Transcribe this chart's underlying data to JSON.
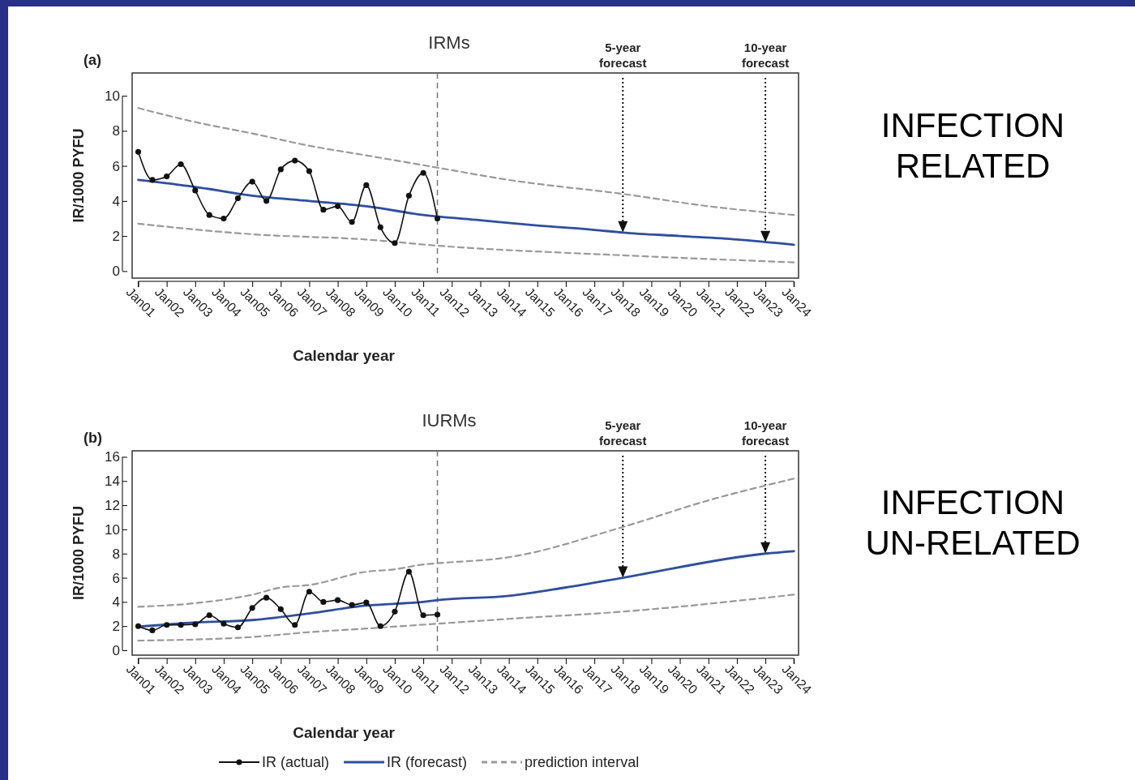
{
  "chart_data": [
    {
      "type": "line",
      "title": "IRMs",
      "xlabel": "Calendar year",
      "ylabel": "IR/1000 PYFU",
      "xlim": [
        "2000-10-15",
        "2024-03-01"
      ],
      "ylim": [
        -0.4,
        11.3
      ],
      "yticks": [
        0,
        2,
        4,
        6,
        8,
        10
      ],
      "xticks": [
        {
          "value": "2001-01",
          "label": "Jan01"
        },
        {
          "value": "2002-01",
          "label": "Jan02"
        },
        {
          "value": "2003-01",
          "label": "Jan03"
        },
        {
          "value": "2004-01",
          "label": "Jan04"
        },
        {
          "value": "2005-01",
          "label": "Jan05"
        },
        {
          "value": "2006-01",
          "label": "Jan06"
        },
        {
          "value": "2007-01",
          "label": "Jan07"
        },
        {
          "value": "2008-01",
          "label": "Jan08"
        },
        {
          "value": "2009-01",
          "label": "Jan09"
        },
        {
          "value": "2010-01",
          "label": "Jan10"
        },
        {
          "value": "2011-01",
          "label": "Jan11"
        },
        {
          "value": "2012-01",
          "label": "Jan12"
        },
        {
          "value": "2013-01",
          "label": "Jan13"
        },
        {
          "value": "2014-01",
          "label": "Jan14"
        },
        {
          "value": "2015-01",
          "label": "Jan15"
        },
        {
          "value": "2016-01",
          "label": "Jan16"
        },
        {
          "value": "2017-01",
          "label": "Jan17"
        },
        {
          "value": "2018-01",
          "label": "Jan18"
        },
        {
          "value": "2019-01",
          "label": "Jan19"
        },
        {
          "value": "2020-01",
          "label": "Jan20"
        },
        {
          "value": "2021-01",
          "label": "Jan21"
        },
        {
          "value": "2022-01",
          "label": "Jan22"
        },
        {
          "value": "2023-01",
          "label": "Jan23"
        },
        {
          "value": "2024-01",
          "label": "Jan24"
        }
      ],
      "series": [
        {
          "color": "#999999",
          "line_style": "dashed",
          "marker": "none",
          "x": [
            "2001-01",
            "2003-01",
            "2005-01",
            "2007-01",
            "2009-01",
            "2011-07",
            "2014-01",
            "2018-01",
            "2021-01",
            "2024-01"
          ],
          "values": [
            9.3,
            8.5,
            7.85,
            7.15,
            6.6,
            5.9,
            5.2,
            4.4,
            3.7,
            3.2
          ]
        },
        {
          "color": "#999999",
          "line_style": "dashed",
          "marker": "none",
          "x": [
            "2001-01",
            "2005-01",
            "2009-01",
            "2011-07",
            "2018-01",
            "2024-01"
          ],
          "values": [
            2.7,
            2.1,
            1.8,
            1.45,
            0.9,
            0.5
          ]
        },
        {
          "color": "#2e4f9e",
          "line_style": "solid",
          "marker": "none",
          "x": [
            "2001-01",
            "2003-01",
            "2005-01",
            "2007-01",
            "2009-01",
            "2011-01",
            "2013-01",
            "2015-01",
            "2017-01",
            "2018-01",
            "2020-01",
            "2022-01",
            "2024-01"
          ],
          "values": [
            5.2,
            4.8,
            4.3,
            4.0,
            3.7,
            3.2,
            2.9,
            2.6,
            2.35,
            2.2,
            2.0,
            1.8,
            1.5
          ]
        },
        {
          "color": "#111111",
          "line_style": "solid",
          "marker": "circle",
          "x": [
            "2001-01",
            "2001-07",
            "2002-01",
            "2002-07",
            "2003-01",
            "2003-07",
            "2004-01",
            "2004-07",
            "2005-01",
            "2005-07",
            "2006-01",
            "2006-07",
            "2007-01",
            "2007-07",
            "2008-01",
            "2008-07",
            "2009-01",
            "2009-07",
            "2010-01",
            "2010-07",
            "2011-01",
            "2011-07"
          ],
          "values": [
            6.8,
            5.2,
            5.4,
            6.1,
            4.6,
            3.2,
            3.0,
            4.15,
            5.1,
            4.0,
            5.8,
            6.3,
            5.7,
            3.5,
            3.7,
            2.8,
            4.9,
            2.5,
            1.6,
            4.3,
            5.6,
            3.0
          ]
        }
      ],
      "ref_lines": [
        {
          "axis": "x",
          "value": "2011-07",
          "color": "#777777",
          "line_style": "dashed"
        },
        {
          "axis": "x",
          "value": "2018-01",
          "label": "5-year forecast",
          "color": "#111111",
          "line_style": "dotted"
        },
        {
          "axis": "x",
          "value": "2023-01",
          "label": "10-year forecast",
          "color": "#111111",
          "line_style": "dotted"
        }
      ],
      "annotations": [
        "(a)",
        "INFECTION RELATED"
      ]
    },
    {
      "type": "line",
      "title": "IURMs",
      "xlabel": "Calendar year",
      "ylabel": "IR/1000 PYFU",
      "legend": "bottom",
      "xlim": [
        "2000-10-15",
        "2024-03-01"
      ],
      "ylim": [
        -0.4,
        16.5
      ],
      "yticks": [
        0,
        2,
        4,
        6,
        8,
        10,
        12,
        14,
        16
      ],
      "xticks": [
        {
          "value": "2001-01",
          "label": "Jan01"
        },
        {
          "value": "2002-01",
          "label": "Jan02"
        },
        {
          "value": "2003-01",
          "label": "Jan03"
        },
        {
          "value": "2004-01",
          "label": "Jan04"
        },
        {
          "value": "2005-01",
          "label": "Jan05"
        },
        {
          "value": "2006-01",
          "label": "Jan06"
        },
        {
          "value": "2007-01",
          "label": "Jan07"
        },
        {
          "value": "2008-01",
          "label": "Jan08"
        },
        {
          "value": "2009-01",
          "label": "Jan09"
        },
        {
          "value": "2010-01",
          "label": "Jan10"
        },
        {
          "value": "2011-01",
          "label": "Jan11"
        },
        {
          "value": "2012-01",
          "label": "Jan12"
        },
        {
          "value": "2013-01",
          "label": "Jan13"
        },
        {
          "value": "2014-01",
          "label": "Jan14"
        },
        {
          "value": "2015-01",
          "label": "Jan15"
        },
        {
          "value": "2016-01",
          "label": "Jan16"
        },
        {
          "value": "2017-01",
          "label": "Jan17"
        },
        {
          "value": "2018-01",
          "label": "Jan18"
        },
        {
          "value": "2019-01",
          "label": "Jan19"
        },
        {
          "value": "2020-01",
          "label": "Jan20"
        },
        {
          "value": "2021-01",
          "label": "Jan21"
        },
        {
          "value": "2022-01",
          "label": "Jan22"
        },
        {
          "value": "2023-01",
          "label": "Jan23"
        },
        {
          "value": "2024-01",
          "label": "Jan24"
        }
      ],
      "series": [
        {
          "name": "prediction interval",
          "color": "#999999",
          "line_style": "dashed",
          "marker": "none",
          "x": [
            "2001-01",
            "2003-01",
            "2005-01",
            "2006-01",
            "2007-01",
            "2009-01",
            "2010-01",
            "2011-01",
            "2011-07",
            "2014-01",
            "2018-01",
            "2021-01",
            "2024-01"
          ],
          "values": [
            3.6,
            3.9,
            4.6,
            5.2,
            5.4,
            6.5,
            6.7,
            7.1,
            7.2,
            7.7,
            10.2,
            12.4,
            14.2
          ]
        },
        {
          "color": "#999999",
          "line_style": "dashed",
          "marker": "none",
          "x": [
            "2001-01",
            "2005-01",
            "2007-01",
            "2009-01",
            "2011-07",
            "2014-01",
            "2018-01",
            "2024-01"
          ],
          "values": [
            0.8,
            1.1,
            1.5,
            1.8,
            2.2,
            2.6,
            3.2,
            4.6
          ]
        },
        {
          "name": "IR (forecast)",
          "color": "#2e4f9e",
          "line_style": "solid",
          "marker": "none",
          "x": [
            "2001-01",
            "2003-01",
            "2005-01",
            "2007-01",
            "2009-01",
            "2010-01",
            "2011-01",
            "2011-07",
            "2014-01",
            "2016-01",
            "2018-01",
            "2023-01",
            "2024-01"
          ],
          "values": [
            1.95,
            2.3,
            2.5,
            3.05,
            3.7,
            3.85,
            4.0,
            4.15,
            4.5,
            5.2,
            6.0,
            8.0,
            8.2
          ]
        },
        {
          "name": "IR (actual)",
          "color": "#111111",
          "line_style": "solid",
          "marker": "circle",
          "x": [
            "2001-01",
            "2001-07",
            "2002-01",
            "2002-07",
            "2003-01",
            "2003-07",
            "2004-01",
            "2004-07",
            "2005-01",
            "2005-07",
            "2006-01",
            "2006-07",
            "2007-01",
            "2007-07",
            "2008-01",
            "2008-07",
            "2009-01",
            "2009-07",
            "2010-01",
            "2010-07",
            "2011-01",
            "2011-07"
          ],
          "values": [
            2.0,
            1.65,
            2.1,
            2.1,
            2.15,
            2.9,
            2.2,
            1.9,
            3.5,
            4.35,
            3.4,
            2.1,
            4.85,
            4.0,
            4.15,
            3.75,
            3.95,
            2.0,
            3.2,
            6.5,
            2.9,
            2.95
          ]
        }
      ],
      "ref_lines": [
        {
          "axis": "x",
          "value": "2011-07",
          "color": "#777777",
          "line_style": "dashed"
        },
        {
          "axis": "x",
          "value": "2018-01",
          "label": "5-year forecast",
          "color": "#111111",
          "line_style": "dotted"
        },
        {
          "axis": "x",
          "value": "2023-01",
          "label": "10-year forecast",
          "color": "#111111",
          "line_style": "dotted"
        }
      ],
      "annotations": [
        "(b)",
        "INFECTION UN-RELATED"
      ]
    }
  ]
}
